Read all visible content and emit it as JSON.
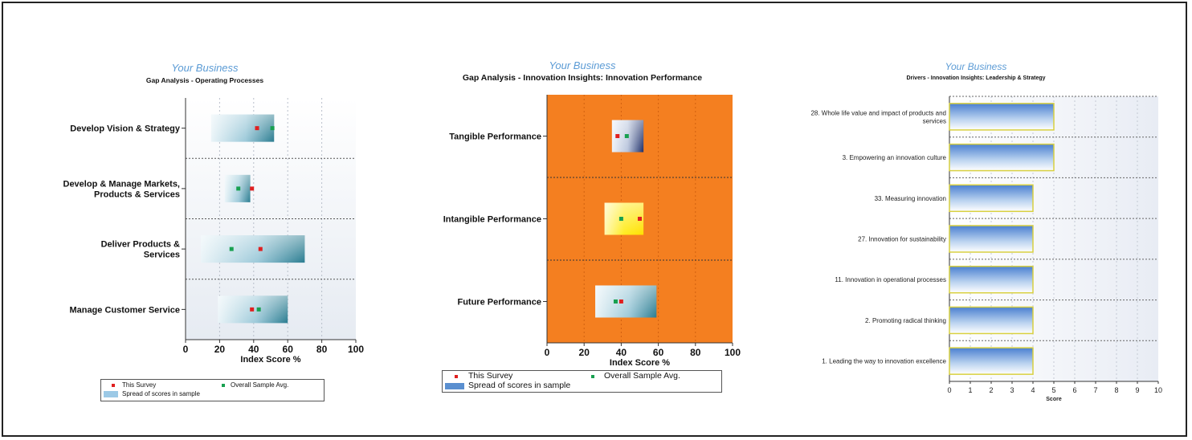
{
  "panels": [
    {
      "subtitle": "Your Business",
      "title": "Gap Analysis - Operating Processes",
      "xlabel": "Index Score %",
      "legend": {
        "this_survey": "This Survey",
        "overall": "Overall Sample Avg.",
        "spread": "Spread of scores in sample"
      }
    },
    {
      "subtitle": "Your Business",
      "title": "Gap Analysis - Innovation Insights: Innovation Performance",
      "xlabel": "Index Score %",
      "legend": {
        "this_survey": "This Survey",
        "overall": "Overall Sample Avg.",
        "spread": "Spread of scores in sample"
      }
    },
    {
      "subtitle": "Your Business",
      "title": "Drivers - Innovation Insights: Leadership & Strategy",
      "xlabel": "Score"
    }
  ],
  "colors": {
    "this_survey": "#e02020",
    "overall": "#18a050",
    "orange_plot": "#f47f20",
    "bar_outline": "#d8d040"
  },
  "chart_data": [
    {
      "type": "range-dot",
      "xlim": [
        0,
        100
      ],
      "xticks": [
        "0",
        "20",
        "40",
        "60",
        "80",
        "100"
      ],
      "categories": [
        "Develop Vision & Strategy",
        "Develop & Manage Markets, Products & Services",
        "Deliver Products & Services",
        "Manage Customer Service"
      ],
      "spread_min": [
        15,
        23,
        9,
        19
      ],
      "spread_max": [
        52,
        38,
        70,
        60
      ],
      "this_survey": [
        42,
        39,
        44,
        39
      ],
      "overall_avg": [
        51,
        31,
        27,
        43
      ]
    },
    {
      "type": "range-dot",
      "xlim": [
        0,
        100
      ],
      "xticks": [
        "0",
        "20",
        "40",
        "60",
        "80",
        "100"
      ],
      "categories": [
        "Tangible Performance",
        "Intangible Performance",
        "Future Performance"
      ],
      "spread_min": [
        35,
        31,
        26
      ],
      "spread_max": [
        52,
        52,
        59
      ],
      "this_survey": [
        38,
        50,
        40
      ],
      "overall_avg": [
        43,
        40,
        37
      ]
    },
    {
      "type": "bar",
      "orientation": "horizontal",
      "xlim": [
        0,
        10
      ],
      "xticks": [
        "0",
        "1",
        "2",
        "3",
        "4",
        "5",
        "6",
        "7",
        "8",
        "9",
        "10"
      ],
      "categories": [
        "28. Whole life value and impact of products and services",
        "3. Empowering an innovation culture",
        "33. Measuring innovation",
        "27. Innovation for sustainability",
        "11. Innovation in operational processes",
        "2. Promoting radical thinking",
        "1. Leading the way to innovation excellence"
      ],
      "values": [
        5,
        5,
        4,
        4,
        4,
        4,
        4
      ]
    }
  ]
}
